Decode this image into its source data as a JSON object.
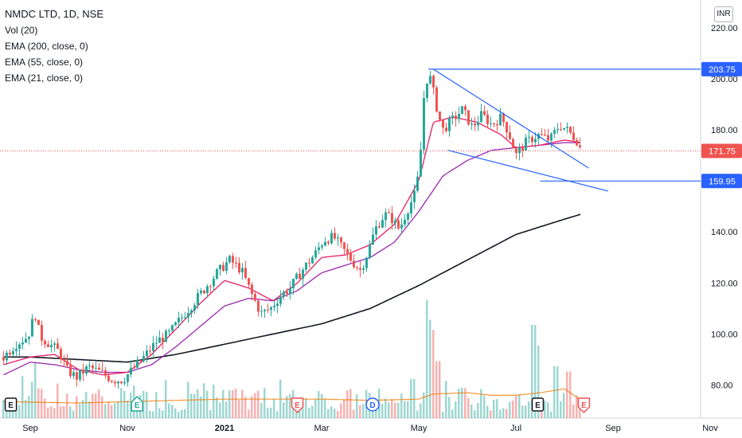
{
  "legend": {
    "title": "NMDC LTD, 1D, NSE",
    "indicators": [
      "Vol (20)",
      "EMA (200, close, 0)",
      "EMA (55, close, 0)",
      "EMA (21, close, 0)"
    ]
  },
  "currency": "INR",
  "colors": {
    "up": "#26a69a",
    "down": "#ef5350",
    "trendline": "#2962ff",
    "ema21": "#e91e63",
    "ema55": "#9c27b0",
    "ema200": "#131722",
    "vol_ma": "#f57c00"
  },
  "chart_data": {
    "type": "candlestick",
    "title": "NMDC LTD, 1D, NSE",
    "ylim": [
      68,
      224
    ],
    "y_ticks": [
      "220.00",
      "200.00",
      "180.00",
      "160.00",
      "140.00",
      "120.00",
      "100.00",
      "80.00"
    ],
    "y_tick_values": [
      220,
      200,
      180,
      160,
      140,
      120,
      100,
      80
    ],
    "x_ticks": [
      {
        "label": "Sep",
        "t": 0,
        "bold": false
      },
      {
        "label": "Nov",
        "t": 2,
        "bold": false
      },
      {
        "label": "2021",
        "t": 4,
        "bold": true
      },
      {
        "label": "Mar",
        "t": 6,
        "bold": false
      },
      {
        "label": "May",
        "t": 8,
        "bold": false
      },
      {
        "label": "Jul",
        "t": 10,
        "bold": false
      },
      {
        "label": "Sep",
        "t": 12,
        "bold": false
      },
      {
        "label": "Nov",
        "t": 14,
        "bold": false
      }
    ],
    "price_path": [
      [
        -0.55,
        91
      ],
      [
        -0.3,
        96
      ],
      [
        -0.05,
        99
      ],
      [
        0.1,
        108
      ],
      [
        0.2,
        99
      ],
      [
        0.4,
        96
      ],
      [
        0.6,
        93
      ],
      [
        0.75,
        86
      ],
      [
        0.95,
        83
      ],
      [
        1.2,
        87
      ],
      [
        1.45,
        85
      ],
      [
        1.7,
        82
      ],
      [
        1.9,
        82
      ],
      [
        2.05,
        85
      ],
      [
        2.3,
        90
      ],
      [
        2.6,
        97
      ],
      [
        2.85,
        100
      ],
      [
        3.1,
        106
      ],
      [
        3.35,
        112
      ],
      [
        3.6,
        118
      ],
      [
        3.85,
        124
      ],
      [
        4.1,
        129
      ],
      [
        4.35,
        125
      ],
      [
        4.55,
        116
      ],
      [
        4.75,
        108
      ],
      [
        4.95,
        110
      ],
      [
        5.15,
        115
      ],
      [
        5.35,
        118
      ],
      [
        5.6,
        125
      ],
      [
        5.85,
        131
      ],
      [
        6.05,
        137
      ],
      [
        6.25,
        138
      ],
      [
        6.45,
        133
      ],
      [
        6.65,
        128
      ],
      [
        6.8,
        125
      ],
      [
        6.95,
        132
      ],
      [
        7.1,
        141
      ],
      [
        7.3,
        147
      ],
      [
        7.45,
        145
      ],
      [
        7.6,
        141
      ],
      [
        7.75,
        148
      ],
      [
        7.95,
        156
      ],
      [
        8.05,
        174
      ],
      [
        8.1,
        192
      ],
      [
        8.2,
        203
      ],
      [
        8.3,
        195
      ],
      [
        8.4,
        186
      ],
      [
        8.5,
        180
      ],
      [
        8.7,
        184
      ],
      [
        8.9,
        188
      ],
      [
        9.1,
        181
      ],
      [
        9.3,
        186
      ],
      [
        9.5,
        182
      ],
      [
        9.7,
        185
      ],
      [
        9.85,
        179
      ],
      [
        10.0,
        170
      ],
      [
        10.2,
        175
      ],
      [
        10.45,
        178
      ],
      [
        10.7,
        176
      ],
      [
        10.9,
        182
      ],
      [
        11.05,
        180
      ],
      [
        11.25,
        176
      ],
      [
        11.35,
        171.75
      ]
    ],
    "ema21": [
      [
        -0.55,
        88
      ],
      [
        0,
        91
      ],
      [
        0.5,
        92
      ],
      [
        1,
        86
      ],
      [
        1.5,
        84
      ],
      [
        2,
        85
      ],
      [
        2.5,
        92
      ],
      [
        3,
        102
      ],
      [
        3.5,
        112
      ],
      [
        4,
        121
      ],
      [
        4.5,
        118
      ],
      [
        5,
        113
      ],
      [
        5.5,
        120
      ],
      [
        6,
        130
      ],
      [
        6.5,
        131
      ],
      [
        7,
        135
      ],
      [
        7.5,
        143
      ],
      [
        8,
        160
      ],
      [
        8.3,
        183
      ],
      [
        8.7,
        185
      ],
      [
        9.2,
        183
      ],
      [
        9.7,
        178
      ],
      [
        10.0,
        173
      ],
      [
        10.5,
        174
      ],
      [
        11.0,
        176
      ],
      [
        11.35,
        175
      ]
    ],
    "ema55": [
      [
        -0.55,
        84
      ],
      [
        0,
        89
      ],
      [
        0.5,
        88
      ],
      [
        1,
        86
      ],
      [
        1.5,
        85
      ],
      [
        2,
        85
      ],
      [
        2.5,
        88
      ],
      [
        3,
        95
      ],
      [
        3.5,
        103
      ],
      [
        4,
        111
      ],
      [
        4.5,
        114
      ],
      [
        5,
        113
      ],
      [
        5.5,
        117
      ],
      [
        6,
        124
      ],
      [
        6.5,
        127
      ],
      [
        7,
        130
      ],
      [
        7.5,
        136
      ],
      [
        8,
        148
      ],
      [
        8.5,
        162
      ],
      [
        9,
        168
      ],
      [
        9.5,
        172
      ],
      [
        10,
        173
      ],
      [
        10.5,
        174
      ],
      [
        11.0,
        175
      ],
      [
        11.35,
        175
      ]
    ],
    "ema200": [
      [
        -0.55,
        91
      ],
      [
        0,
        91
      ],
      [
        1,
        90
      ],
      [
        2,
        89
      ],
      [
        3,
        92
      ],
      [
        4,
        96
      ],
      [
        5,
        100
      ],
      [
        6,
        104
      ],
      [
        7,
        110
      ],
      [
        8,
        119
      ],
      [
        9,
        129
      ],
      [
        10,
        139
      ],
      [
        11,
        145
      ],
      [
        11.35,
        147
      ]
    ],
    "volume_ma": [
      [
        -0.55,
        73.5
      ],
      [
        1,
        73.0
      ],
      [
        2,
        73.5
      ],
      [
        3,
        74.0
      ],
      [
        4,
        74.5
      ],
      [
        5,
        74.5
      ],
      [
        6,
        74.5
      ],
      [
        7,
        74.0
      ],
      [
        8,
        74.5
      ],
      [
        8.3,
        76.5
      ],
      [
        9,
        77.0
      ],
      [
        9.5,
        76.0
      ],
      [
        10,
        76.0
      ],
      [
        10.5,
        77.0
      ],
      [
        11.0,
        78.5
      ],
      [
        11.35,
        74.0
      ]
    ],
    "volume_spikes": [
      {
        "t": 0.05,
        "v": 0.35
      },
      {
        "t": 7.9,
        "v": 0.38
      },
      {
        "t": 8.2,
        "v": 0.95
      },
      {
        "t": 8.25,
        "v": 0.85
      },
      {
        "t": 8.4,
        "v": 0.55
      },
      {
        "t": 10.4,
        "v": 0.9
      },
      {
        "t": 10.45,
        "v": 0.7
      },
      {
        "t": 10.85,
        "v": 0.5
      },
      {
        "t": 11.1,
        "v": 0.45
      }
    ],
    "horizontal_lines": [
      {
        "value": 203.75,
        "label": "203.75",
        "t_start": 8.2,
        "t_end": 15.5
      },
      {
        "value": 159.95,
        "label": "159.95",
        "t_start": 10.5,
        "t_end": 15.5
      }
    ],
    "trendlines": [
      {
        "from": [
          8.3,
          203.75
        ],
        "to": [
          11.5,
          165
        ]
      },
      {
        "from": [
          8.6,
          172
        ],
        "to": [
          11.9,
          156
        ]
      }
    ],
    "last_price": {
      "value": 171.75,
      "label": "171.75"
    },
    "events": [
      {
        "type": "E",
        "t": -0.4,
        "style": "neutral"
      },
      {
        "type": "E",
        "t": 2.2,
        "style": "green"
      },
      {
        "type": "E",
        "t": 5.5,
        "style": "red"
      },
      {
        "type": "D",
        "t": 7.05,
        "style": "blue"
      },
      {
        "type": "E",
        "t": 10.45,
        "style": "neutral"
      },
      {
        "type": "E",
        "t": 11.4,
        "style": "red"
      }
    ]
  }
}
